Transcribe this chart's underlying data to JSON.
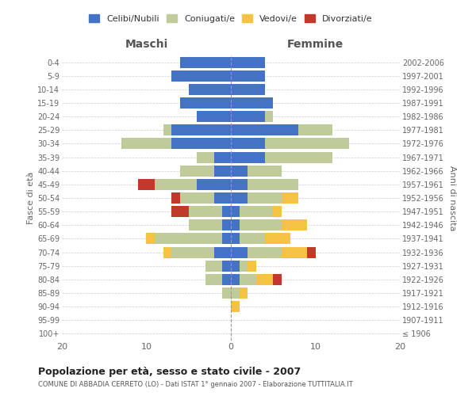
{
  "age_groups": [
    "100+",
    "95-99",
    "90-94",
    "85-89",
    "80-84",
    "75-79",
    "70-74",
    "65-69",
    "60-64",
    "55-59",
    "50-54",
    "45-49",
    "40-44",
    "35-39",
    "30-34",
    "25-29",
    "20-24",
    "15-19",
    "10-14",
    "5-9",
    "0-4"
  ],
  "birth_years": [
    "≤ 1906",
    "1907-1911",
    "1912-1916",
    "1917-1921",
    "1922-1926",
    "1927-1931",
    "1932-1936",
    "1937-1941",
    "1942-1946",
    "1947-1951",
    "1952-1956",
    "1957-1961",
    "1962-1966",
    "1967-1971",
    "1972-1976",
    "1977-1981",
    "1982-1986",
    "1987-1991",
    "1992-1996",
    "1997-2001",
    "2002-2006"
  ],
  "maschi": {
    "celibi": [
      0,
      0,
      0,
      0,
      1,
      1,
      2,
      1,
      1,
      1,
      2,
      4,
      2,
      2,
      7,
      7,
      4,
      6,
      5,
      7,
      6
    ],
    "coniugati": [
      0,
      0,
      0,
      1,
      2,
      2,
      5,
      8,
      4,
      4,
      4,
      5,
      4,
      2,
      6,
      1,
      0,
      0,
      0,
      0,
      0
    ],
    "vedovi": [
      0,
      0,
      0,
      0,
      0,
      0,
      1,
      1,
      0,
      0,
      0,
      0,
      0,
      0,
      0,
      0,
      0,
      0,
      0,
      0,
      0
    ],
    "divorziati": [
      0,
      0,
      0,
      0,
      0,
      0,
      0,
      0,
      0,
      2,
      1,
      2,
      0,
      0,
      0,
      0,
      0,
      0,
      0,
      0,
      0
    ]
  },
  "femmine": {
    "nubili": [
      0,
      0,
      0,
      0,
      1,
      1,
      2,
      1,
      1,
      1,
      2,
      2,
      2,
      4,
      4,
      8,
      4,
      5,
      4,
      4,
      4
    ],
    "coniugate": [
      0,
      0,
      0,
      1,
      2,
      1,
      4,
      3,
      5,
      4,
      4,
      6,
      4,
      8,
      10,
      4,
      1,
      0,
      0,
      0,
      0
    ],
    "vedove": [
      0,
      0,
      1,
      1,
      2,
      1,
      3,
      3,
      3,
      1,
      2,
      0,
      0,
      0,
      0,
      0,
      0,
      0,
      0,
      0,
      0
    ],
    "divorziate": [
      0,
      0,
      0,
      0,
      1,
      0,
      1,
      0,
      0,
      0,
      0,
      0,
      0,
      0,
      0,
      0,
      0,
      0,
      0,
      0,
      0
    ]
  },
  "colors": {
    "celibi_nubili": "#4472C4",
    "coniugati_e": "#BFCC99",
    "vedovi_e": "#F5C242",
    "divorziati_e": "#C0392B"
  },
  "xlim": 20,
  "title": "Popolazione per età, sesso e stato civile - 2007",
  "subtitle": "COMUNE DI ABBADIA CERRETO (LO) - Dati ISTAT 1° gennaio 2007 - Elaborazione TUTTITALIA.IT",
  "ylabel_left": "Fasce di età",
  "ylabel_right": "Anni di nascita",
  "xlabel_left": "Maschi",
  "xlabel_right": "Femmine",
  "legend_labels": [
    "Celibi/Nubili",
    "Coniugati/e",
    "Vedovi/e",
    "Divorziati/e"
  ],
  "background_color": "#FFFFFF",
  "grid_color": "#CCCCCC"
}
